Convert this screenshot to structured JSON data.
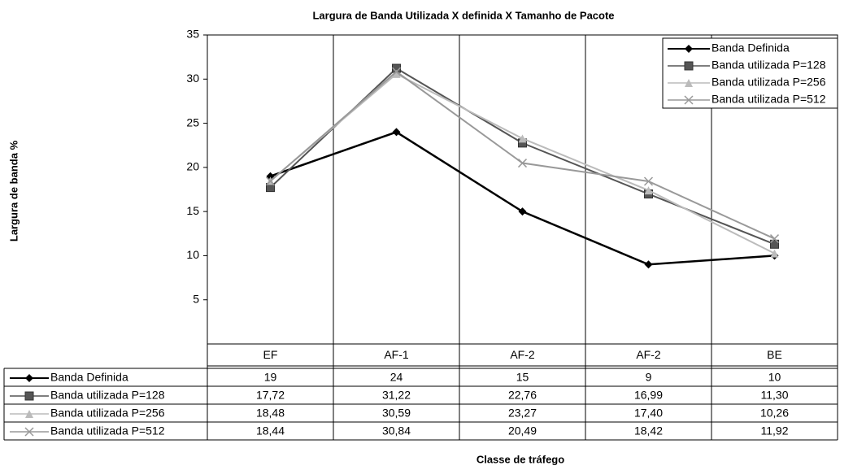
{
  "chart_data": {
    "type": "line",
    "title": "Largura de Banda Utilizada X definida X Tamanho de Pacote",
    "x_label": "Classe de tráfego",
    "y_label": "Largura de banda %",
    "categories": [
      "EF",
      "AF-1",
      "AF-2",
      "AF-2",
      "BE"
    ],
    "ylim": [
      0,
      35
    ],
    "yticks": [
      5,
      10,
      15,
      20,
      25,
      30,
      35
    ],
    "legend": "top-right",
    "series": [
      {
        "name": "Banda Definida",
        "color": "#000000",
        "marker": "diamond",
        "values": [
          19,
          24,
          15,
          9,
          10
        ]
      },
      {
        "name": "Banda utilizada P=128",
        "color": "#555555",
        "marker": "square",
        "values": [
          17.72,
          31.22,
          22.76,
          16.99,
          11.3
        ],
        "value_labels": [
          "17,72",
          "31,22",
          "22,76",
          "16,99",
          "11,30"
        ]
      },
      {
        "name": "Banda utilizada P=256",
        "color": "#bbbbbb",
        "marker": "triangle",
        "values": [
          18.48,
          30.59,
          23.27,
          17.4,
          10.26
        ],
        "value_labels": [
          "18,48",
          "30,59",
          "23,27",
          "17,40",
          "10,26"
        ]
      },
      {
        "name": "Banda utilizada P=512",
        "color": "#999999",
        "marker": "x",
        "values": [
          18.44,
          30.84,
          20.49,
          18.42,
          11.92
        ],
        "value_labels": [
          "18,44",
          "30,84",
          "20,49",
          "18,42",
          "11,92"
        ]
      }
    ]
  }
}
